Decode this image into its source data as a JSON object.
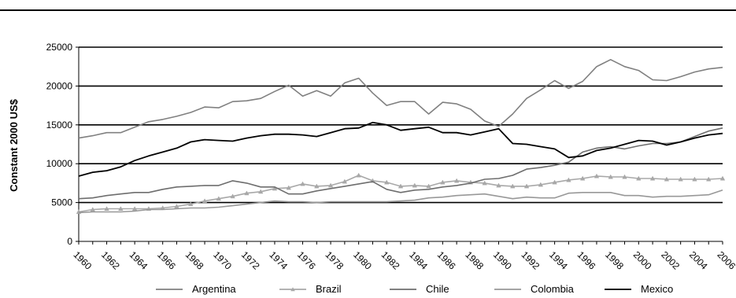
{
  "chart_data": {
    "type": "line",
    "ylabel": "Constant 2000 US$",
    "xlabel": "",
    "ylim": [
      0,
      25000
    ],
    "yticks": [
      0,
      5000,
      10000,
      15000,
      20000,
      25000
    ],
    "ytick_labels": [
      "0",
      "5000",
      "10000",
      "15000",
      "20000",
      "25000"
    ],
    "grid": "horizontal",
    "legend_position": "bottom",
    "x": [
      1960,
      1961,
      1962,
      1963,
      1964,
      1965,
      1966,
      1967,
      1968,
      1969,
      1970,
      1971,
      1972,
      1973,
      1974,
      1975,
      1976,
      1977,
      1978,
      1979,
      1980,
      1981,
      1982,
      1983,
      1984,
      1985,
      1986,
      1987,
      1988,
      1989,
      1990,
      1991,
      1992,
      1993,
      1994,
      1995,
      1996,
      1997,
      1998,
      1999,
      2000,
      2001,
      2002,
      2003,
      2004,
      2005,
      2006
    ],
    "xtick_labels": [
      "1960",
      "1962",
      "1964",
      "1966",
      "1968",
      "1970",
      "1972",
      "1974",
      "1976",
      "1978",
      "1980",
      "1982",
      "1984",
      "1986",
      "1988",
      "1990",
      "1992",
      "1994",
      "1996",
      "1998",
      "2000",
      "2002",
      "2004",
      "2006"
    ],
    "series": [
      {
        "name": "Argentina",
        "color": "#808080",
        "marker": "none",
        "values": [
          13300,
          13600,
          14000,
          14000,
          14700,
          15400,
          15700,
          16100,
          16600,
          17300,
          17200,
          18000,
          18100,
          18400,
          19300,
          20100,
          18700,
          19400,
          18700,
          20400,
          21000,
          19100,
          17500,
          18000,
          18000,
          16400,
          17900,
          17700,
          17000,
          15500,
          14800,
          16400,
          18400,
          19500,
          20700,
          19700,
          20600,
          22500,
          23400,
          22500,
          22000,
          20800,
          20700,
          21200,
          21800,
          22200,
          22400
        ]
      },
      {
        "name": "Brazil",
        "color": "#a8a8a8",
        "marker": "triangle",
        "values": [
          3800,
          4100,
          4200,
          4200,
          4200,
          4200,
          4300,
          4500,
          4800,
          5200,
          5500,
          5800,
          6200,
          6400,
          6800,
          6900,
          7400,
          7100,
          7200,
          7700,
          8500,
          7800,
          7600,
          7100,
          7200,
          7100,
          7600,
          7800,
          7600,
          7500,
          7200,
          7100,
          7100,
          7300,
          7600,
          7900,
          8100,
          8400,
          8300,
          8300,
          8100,
          8100,
          8000,
          8000,
          8000,
          8000,
          8100
        ]
      },
      {
        "name": "Chile",
        "color": "#6e6e6e",
        "marker": "none",
        "values": [
          5500,
          5600,
          5900,
          6100,
          6300,
          6300,
          6700,
          7000,
          7100,
          7200,
          7200,
          7800,
          7500,
          7000,
          7000,
          6100,
          6100,
          6500,
          6800,
          7100,
          7400,
          7700,
          6700,
          6300,
          6600,
          6700,
          7000,
          7200,
          7500,
          8000,
          8100,
          8500,
          9300,
          9500,
          9800,
          10200,
          11500,
          12000,
          12200,
          11900,
          12300,
          12600,
          12600,
          12800,
          13500,
          14200,
          14600
        ]
      },
      {
        "name": "Colombia",
        "color": "#989898",
        "marker": "none",
        "values": [
          3700,
          3800,
          3800,
          3800,
          3900,
          4100,
          4100,
          4200,
          4300,
          4300,
          4400,
          4600,
          4800,
          5000,
          5200,
          5100,
          5100,
          5000,
          5100,
          5100,
          5100,
          5100,
          5100,
          5200,
          5300,
          5600,
          5700,
          5900,
          6000,
          6100,
          5800,
          5500,
          5700,
          5600,
          5600,
          6200,
          6300,
          6300,
          6300,
          5900,
          5900,
          5700,
          5800,
          5800,
          5900,
          6000,
          6600
        ]
      },
      {
        "name": "Mexico",
        "color": "#000000",
        "marker": "none",
        "values": [
          8400,
          8900,
          9100,
          9600,
          10400,
          11000,
          11500,
          12000,
          12800,
          13100,
          13000,
          12900,
          13300,
          13600,
          13800,
          13800,
          13700,
          13500,
          14000,
          14500,
          14600,
          15300,
          15000,
          14300,
          14500,
          14700,
          14000,
          14000,
          13700,
          14100,
          14500,
          12600,
          12500,
          12200,
          11900,
          10800,
          11000,
          11700,
          12000,
          12500,
          13000,
          12900,
          12400,
          12800,
          13300,
          13700,
          13900
        ]
      }
    ]
  }
}
